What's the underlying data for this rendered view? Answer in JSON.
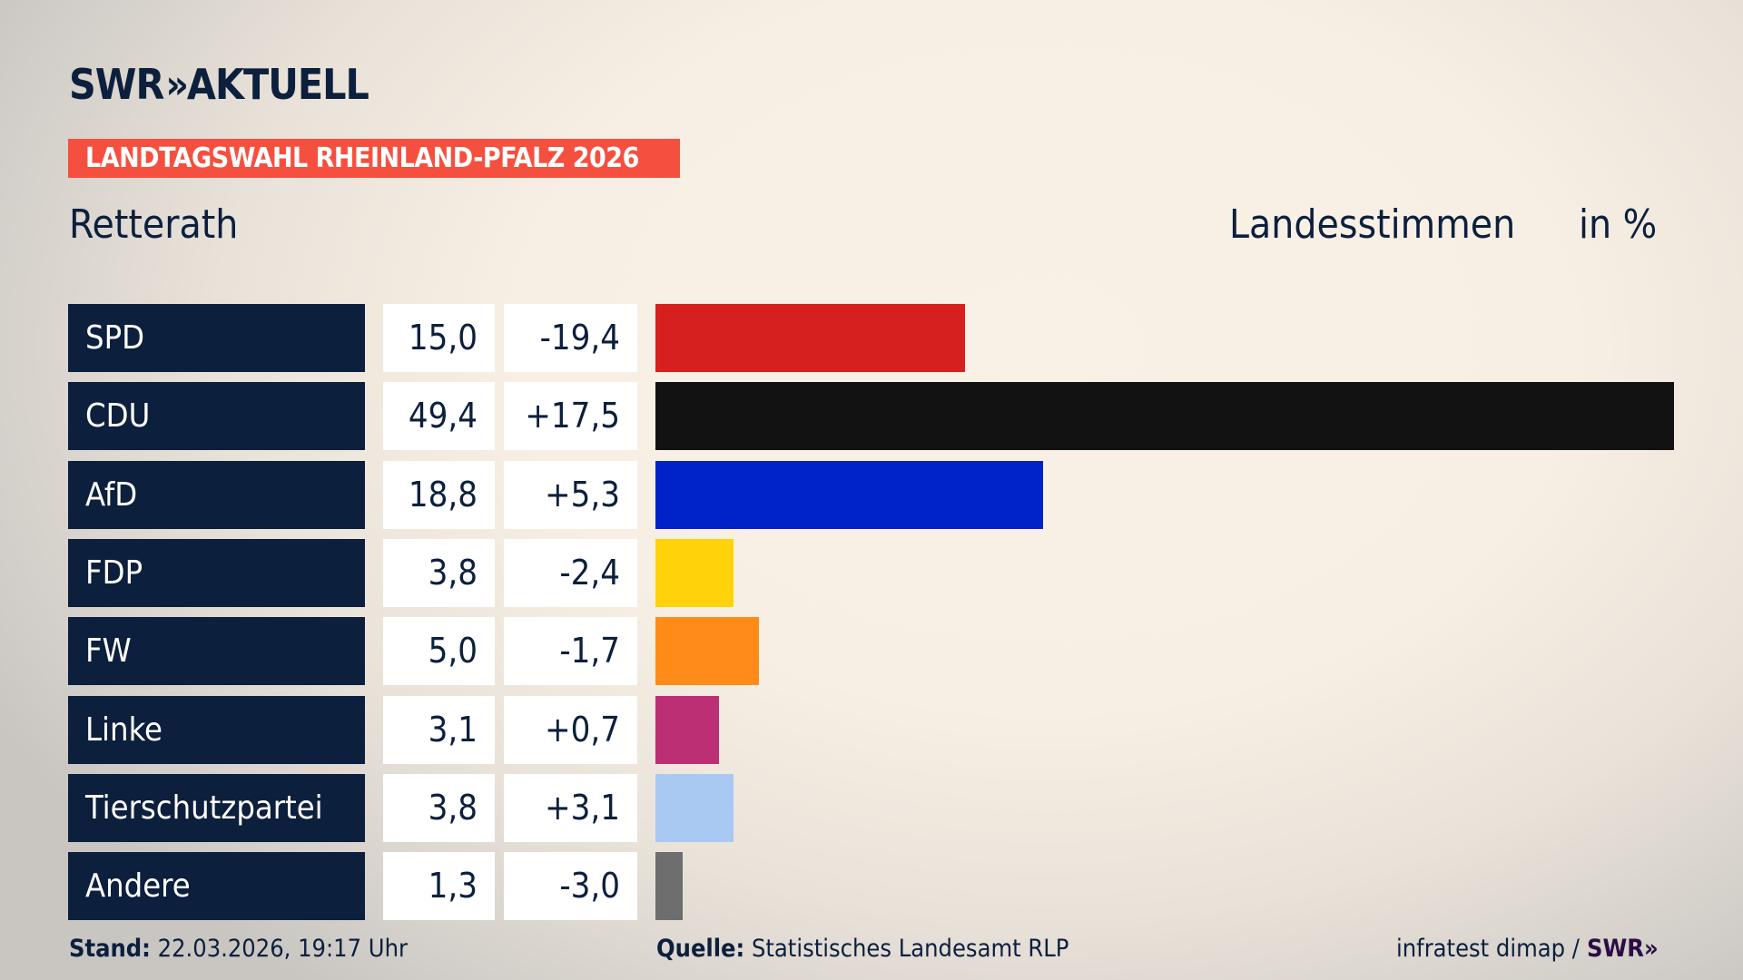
{
  "header": {
    "logo": "SWR AKTUELL",
    "logo_left": "SWR",
    "logo_chevron": "»",
    "logo_right": "AKTUELL",
    "banner": "LANDTAGSWAHL RHEINLAND-PFALZ 2026",
    "banner_color": "#f5503f",
    "place": "Retterath",
    "measure": "Landesstimmen",
    "unit": "in %"
  },
  "chart_data": {
    "type": "bar",
    "orientation": "horizontal",
    "categories": [
      "SPD",
      "CDU",
      "AfD",
      "FDP",
      "FW",
      "Linke",
      "Tierschutzpartei",
      "Andere"
    ],
    "values": [
      15.0,
      49.4,
      18.8,
      3.8,
      5.0,
      3.1,
      3.8,
      1.3
    ],
    "value_labels": [
      "15,0",
      "49,4",
      "18,8",
      "3,8",
      "5,0",
      "3,1",
      "3,8",
      "1,3"
    ],
    "diff_labels": [
      "-19,4",
      "+17,5",
      "+5,3",
      "-2,4",
      "-1,7",
      "+0,7",
      "+3,1",
      "-3,0"
    ],
    "colors": [
      "#d61f1f",
      "#121212",
      "#0022c9",
      "#ffd20a",
      "#ff8c19",
      "#bc2f75",
      "#a9c9f2",
      "#6e6e6e"
    ],
    "xlim": [
      0,
      49.4
    ],
    "ylabel": "Landesstimmen",
    "unit": "in %"
  },
  "footer": {
    "stand_label": "Stand:",
    "stand_value": "22.03.2026, 19:17 Uhr",
    "source_label": "Quelle:",
    "source_value": "Statistisches Landesamt RLP",
    "credit": "infratest dimap /",
    "credit_logo": "SWR»"
  }
}
